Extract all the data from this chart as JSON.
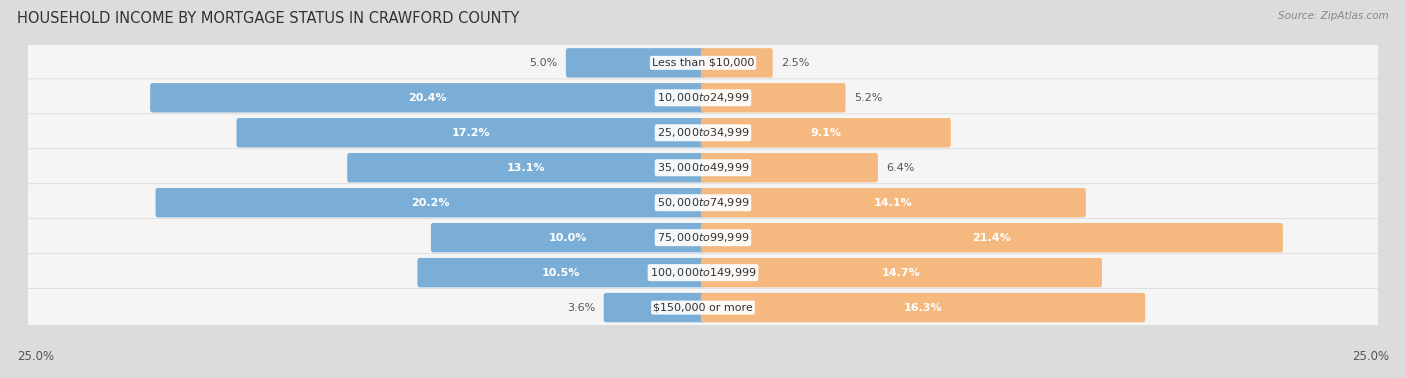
{
  "title": "HOUSEHOLD INCOME BY MORTGAGE STATUS IN CRAWFORD COUNTY",
  "source": "Source: ZipAtlas.com",
  "categories": [
    "Less than $10,000",
    "$10,000 to $24,999",
    "$25,000 to $34,999",
    "$35,000 to $49,999",
    "$50,000 to $74,999",
    "$75,000 to $99,999",
    "$100,000 to $149,999",
    "$150,000 or more"
  ],
  "without_mortgage": [
    5.0,
    20.4,
    17.2,
    13.1,
    20.2,
    10.0,
    10.5,
    3.6
  ],
  "with_mortgage": [
    2.5,
    5.2,
    9.1,
    6.4,
    14.1,
    21.4,
    14.7,
    16.3
  ],
  "without_mortgage_color": "#7aaed6",
  "with_mortgage_color": "#f5b97f",
  "background_color": "#dcdcdc",
  "row_color": "#f5f5f5",
  "max_value": 25.0,
  "label_fontsize": 8.0,
  "title_fontsize": 10.5,
  "legend_fontsize": 9,
  "axis_label_fontsize": 8.5,
  "bar_height": 0.68,
  "inside_label_threshold": 7.5
}
